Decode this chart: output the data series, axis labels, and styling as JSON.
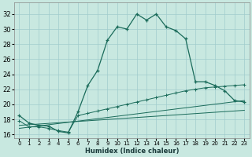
{
  "xlabel": "Humidex (Indice chaleur)",
  "bg_color": "#c8e8e0",
  "line_color": "#1a6b5a",
  "xlim": [
    -0.5,
    23.5
  ],
  "ylim": [
    15.5,
    33.5
  ],
  "xticks": [
    0,
    1,
    2,
    3,
    4,
    5,
    6,
    7,
    8,
    9,
    10,
    11,
    12,
    13,
    14,
    15,
    16,
    17,
    18,
    19,
    20,
    21,
    22,
    23
  ],
  "yticks": [
    16,
    18,
    20,
    22,
    24,
    26,
    28,
    30,
    32
  ],
  "grid_color": "#a0cccc",
  "series1_x": [
    0,
    1,
    2,
    3,
    4,
    5,
    6,
    7,
    8,
    9,
    10,
    11,
    12,
    13,
    14,
    15,
    16,
    17,
    18,
    19,
    20,
    21,
    22,
    23
  ],
  "series1_y": [
    18.5,
    17.5,
    17.2,
    17.1,
    16.4,
    16.2,
    19.0,
    22.5,
    24.5,
    28.5,
    30.3,
    30.0,
    32.0,
    31.2,
    32.0,
    30.3,
    29.8,
    28.7,
    23.0,
    23.0,
    22.5,
    21.8,
    20.5,
    20.3
  ],
  "series2_x": [
    0,
    1,
    2,
    3,
    4,
    5,
    6,
    7,
    8,
    9,
    10,
    11,
    12,
    13,
    14,
    15,
    16,
    17,
    18,
    19,
    20,
    21,
    22,
    23
  ],
  "series2_y": [
    17.8,
    17.0,
    17.0,
    16.8,
    16.5,
    16.3,
    18.5,
    18.8,
    19.1,
    19.4,
    19.7,
    20.0,
    20.3,
    20.6,
    20.9,
    21.2,
    21.5,
    21.8,
    22.0,
    22.2,
    22.3,
    22.4,
    22.5,
    22.6
  ],
  "series3_x": [
    0,
    23
  ],
  "series3_y": [
    17.2,
    19.2
  ],
  "series4_x": [
    0,
    23
  ],
  "series4_y": [
    16.8,
    20.5
  ]
}
